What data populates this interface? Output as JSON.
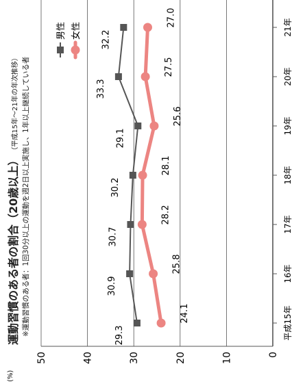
{
  "chart_data": {
    "type": "line",
    "title": "運動習慣のある者の割合（20歳以上）",
    "subtitle": "（平成15年〜21年の年次推移）",
    "note": "※運動習慣のある者：1回30分以上の運動を週2日以上実施し、1年以上継続している者",
    "ylabel": "(%)",
    "ylim": [
      0,
      50
    ],
    "yticks": [
      "0",
      "10",
      "20",
      "30",
      "40",
      "50"
    ],
    "categories": [
      "平成15年",
      "16年",
      "17年",
      "18年",
      "19年",
      "20年",
      "21年"
    ],
    "series": [
      {
        "name": "男性",
        "color": "#555555",
        "labels": [
          "29.3",
          "30.9",
          "30.7",
          "30.2",
          "29.1",
          "33.3",
          "32.2"
        ],
        "values": [
          29.3,
          30.9,
          30.7,
          30.2,
          29.1,
          33.3,
          32.2
        ]
      },
      {
        "name": "女性",
        "color": "#ec8582",
        "labels": [
          "24.1",
          "25.8",
          "28.2",
          "28.1",
          "25.6",
          "27.5",
          "27.0"
        ],
        "values": [
          24.1,
          25.8,
          28.2,
          28.1,
          25.6,
          27.5,
          27.0
        ]
      }
    ],
    "grid": true,
    "legend": "top-right"
  }
}
